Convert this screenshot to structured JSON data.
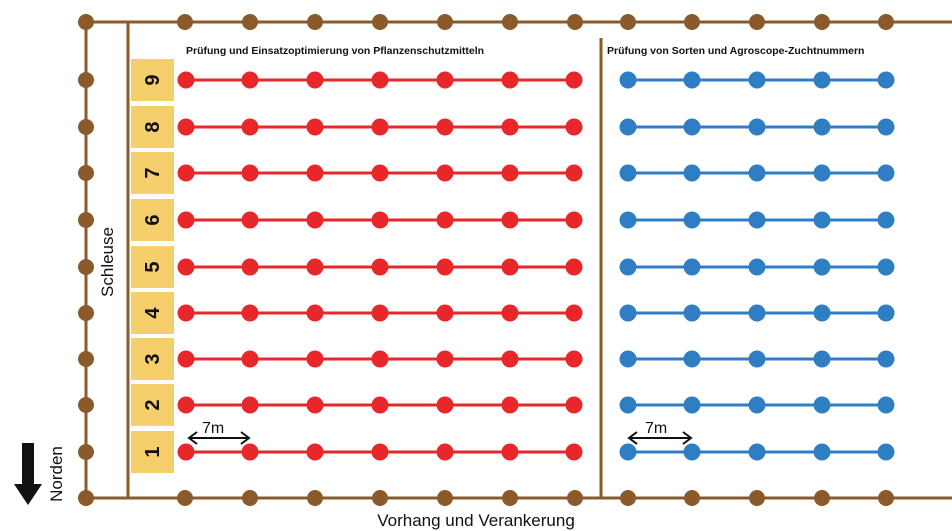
{
  "labels": {
    "left_section_title": "Prüfung und Einsatzoptimierung von Pflanzenschutzmitteln",
    "right_section_title": "Prüfung von Sorten und Agroscope-Zuchtnummern",
    "side_entrance": "Schleuse",
    "bottom_edge": "Vorhang und Verankerung",
    "north": "Norden",
    "spacing_left": "7m",
    "spacing_right": "7m"
  },
  "rows": [
    "1",
    "2",
    "3",
    "4",
    "5",
    "6",
    "7",
    "8",
    "9"
  ],
  "colors": {
    "frame": "#8b5a2b",
    "post": "#8b5a2b",
    "left_rows": "#e8272a",
    "right_rows": "#2f7ec4",
    "row_label_bg": "#f5cf6b",
    "arrow": "#111111"
  }
}
